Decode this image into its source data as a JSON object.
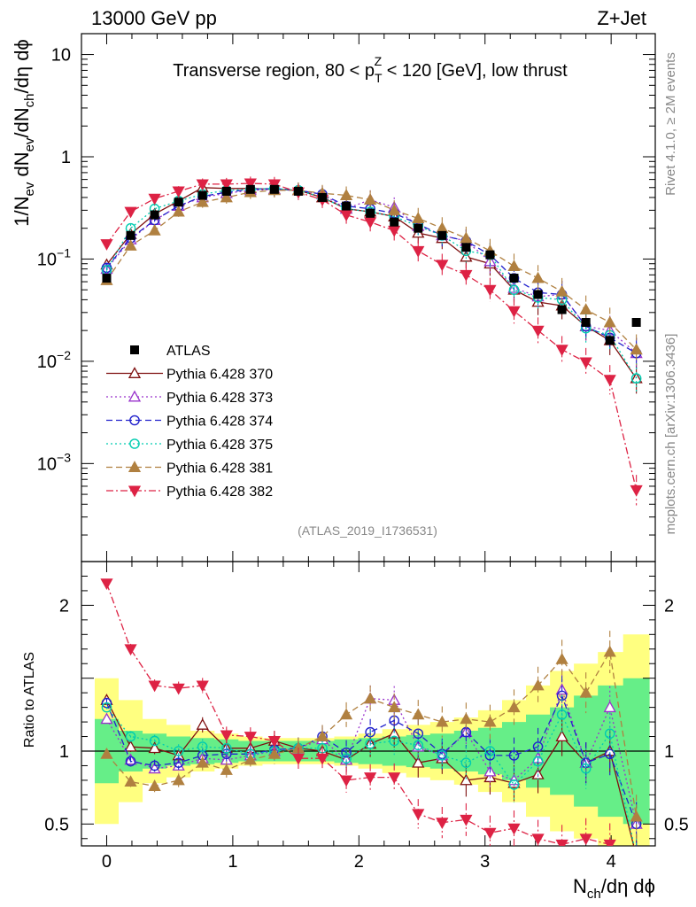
{
  "header": {
    "left": "13000 GeV pp",
    "right": "Z+Jet",
    "side_rivet": "Rivet 4.1.0, ≥ 2M events",
    "side_mcplots": "mcplots.cern.ch [arXiv:1306.3436]",
    "watermark": "(ATLAS_2019_I1736531)"
  },
  "chart_data": {
    "type": "line",
    "title": "Transverse region, 80 < p_T^Z < 120 [GeV], low thrust",
    "title_parts": {
      "a": "Transverse region, 80 < p",
      "sub": "T",
      "sup": "Z",
      "b": " < 120 [GeV], low thrust"
    },
    "xlabel": "N_ch/dη dϕ",
    "xlabel_parts": {
      "a": "N",
      "sub": "ch",
      "b": "/dη dϕ"
    },
    "ylabel": "1/N_ev dN_ev/dN_ch/dη dϕ",
    "ylabel_parts": [
      [
        "1/N",
        ""
      ],
      [
        "ev",
        "sub"
      ],
      [
        " dN",
        ""
      ],
      [
        "ev",
        "sub"
      ],
      [
        "/dN",
        ""
      ],
      [
        "ch",
        "sub"
      ],
      [
        "/dη dϕ",
        ""
      ]
    ],
    "ratio_ylabel": "Ratio to ATLAS",
    "xlim": [
      -0.2,
      4.35
    ],
    "ylim": [
      0.00011,
      16
    ],
    "yscale": "log",
    "ratio_ylim": [
      0.35,
      2.3
    ],
    "x_ticks": [
      0,
      1,
      2,
      3,
      4
    ],
    "x_tick_labels": [
      "0",
      "1",
      "2",
      "3",
      "4"
    ],
    "y_ticks": [
      {
        "v": 10,
        "base": "10",
        "exp": ""
      },
      {
        "v": 1,
        "base": "1",
        "exp": ""
      },
      {
        "v": 0.1,
        "base": "10",
        "exp": "−1"
      },
      {
        "v": 0.01,
        "base": "10",
        "exp": "−2"
      },
      {
        "v": 0.001,
        "base": "10",
        "exp": "−3"
      }
    ],
    "ratio_ticks": [
      0.5,
      1,
      2
    ],
    "ratio_tick_labels": [
      "0.5",
      "1",
      "2"
    ],
    "x": [
      0.0,
      0.19,
      0.38,
      0.57,
      0.76,
      0.95,
      1.14,
      1.33,
      1.52,
      1.71,
      1.9,
      2.09,
      2.28,
      2.47,
      2.66,
      2.85,
      3.04,
      3.23,
      3.42,
      3.61,
      3.8,
      3.99,
      4.2
    ],
    "data": {
      "name": "ATLAS",
      "values": [
        0.065,
        0.17,
        0.27,
        0.36,
        0.42,
        0.46,
        0.48,
        0.48,
        0.46,
        0.4,
        0.33,
        0.28,
        0.23,
        0.2,
        0.17,
        0.13,
        0.11,
        0.065,
        0.045,
        0.032,
        0.024,
        0.016,
        0.024
      ],
      "band_inner": [
        0.22,
        0.14,
        0.12,
        0.1,
        0.09,
        0.08,
        0.07,
        0.07,
        0.07,
        0.07,
        0.08,
        0.09,
        0.1,
        0.11,
        0.12,
        0.14,
        0.16,
        0.2,
        0.25,
        0.3,
        0.38,
        0.45,
        0.5
      ],
      "band_outer": [
        0.5,
        0.35,
        0.22,
        0.18,
        0.14,
        0.12,
        0.1,
        0.09,
        0.09,
        0.09,
        0.1,
        0.12,
        0.15,
        0.18,
        0.2,
        0.23,
        0.28,
        0.35,
        0.45,
        0.55,
        0.6,
        0.68,
        0.8
      ]
    },
    "series": [
      {
        "name": "Pythia 6.428 370",
        "color": "#7f1010",
        "dash": "",
        "marker": "triangle-up-open",
        "values": [
          0.088,
          0.175,
          0.275,
          0.37,
          0.5,
          0.49,
          0.49,
          0.48,
          0.47,
          0.4,
          0.31,
          0.29,
          0.26,
          0.18,
          0.16,
          0.105,
          0.09,
          0.05,
          0.038,
          0.035,
          0.022,
          0.016,
          0.0068
        ],
        "ratio": [
          1.35,
          1.03,
          1.02,
          0.97,
          1.18,
          1.02,
          1.02,
          1.07,
          1.02,
          1.0,
          0.94,
          1.05,
          1.12,
          0.92,
          0.95,
          0.8,
          0.82,
          0.78,
          0.84,
          1.1,
          0.92,
          1.0,
          0.28
        ]
      },
      {
        "name": "Pythia 6.428 373",
        "color": "#9933cc",
        "dash": "2,3",
        "marker": "triangle-up-open",
        "values": [
          0.08,
          0.155,
          0.24,
          0.33,
          0.4,
          0.44,
          0.47,
          0.48,
          0.47,
          0.43,
          0.31,
          0.38,
          0.32,
          0.21,
          0.17,
          0.15,
          0.095,
          0.052,
          0.043,
          0.045,
          0.022,
          0.02,
          0.012
        ],
        "ratio": [
          1.22,
          0.94,
          0.88,
          0.9,
          0.95,
          0.94,
          0.97,
          1.0,
          1.02,
          1.08,
          0.94,
          1.36,
          1.35,
          1.03,
          0.97,
          1.13,
          0.86,
          0.8,
          0.95,
          1.42,
          0.92,
          1.3,
          0.5
        ]
      },
      {
        "name": "Pythia 6.428 374",
        "color": "#2222cc",
        "dash": "7,4",
        "marker": "circle-open",
        "values": [
          0.082,
          0.16,
          0.24,
          0.33,
          0.41,
          0.45,
          0.48,
          0.49,
          0.47,
          0.43,
          0.33,
          0.31,
          0.28,
          0.22,
          0.17,
          0.15,
          0.11,
          0.065,
          0.047,
          0.045,
          0.022,
          0.017,
          0.012
        ],
        "ratio": [
          1.33,
          0.93,
          0.9,
          0.92,
          0.97,
          0.98,
          0.98,
          1.01,
          1.02,
          1.1,
          0.99,
          1.13,
          1.21,
          1.12,
          0.98,
          1.13,
          0.97,
          0.97,
          1.03,
          1.38,
          0.92,
          0.98,
          0.5
        ]
      },
      {
        "name": "Pythia 6.428 375",
        "color": "#00ccb0",
        "dash": "2,3",
        "marker": "circle-open",
        "values": [
          0.078,
          0.2,
          0.31,
          0.37,
          0.43,
          0.47,
          0.48,
          0.49,
          0.47,
          0.4,
          0.31,
          0.29,
          0.26,
          0.21,
          0.17,
          0.12,
          0.11,
          0.05,
          0.042,
          0.04,
          0.021,
          0.018,
          0.0068
        ],
        "ratio": [
          1.3,
          1.1,
          1.07,
          1.0,
          1.03,
          1.02,
          0.98,
          1.0,
          1.02,
          1.02,
          0.95,
          1.05,
          1.07,
          1.04,
          0.97,
          0.92,
          1.0,
          0.77,
          0.93,
          1.25,
          0.88,
          1.12,
          0.28
        ]
      },
      {
        "name": "Pythia 6.428 381",
        "color": "#b08040",
        "dash": "7,4",
        "marker": "triangle-up-filled",
        "values": [
          0.062,
          0.135,
          0.19,
          0.29,
          0.36,
          0.4,
          0.45,
          0.47,
          0.47,
          0.44,
          0.42,
          0.38,
          0.3,
          0.25,
          0.2,
          0.16,
          0.12,
          0.085,
          0.065,
          0.048,
          0.032,
          0.024,
          0.013
        ],
        "ratio": [
          0.98,
          0.79,
          0.76,
          0.8,
          0.92,
          0.87,
          0.94,
          0.98,
          1.02,
          1.1,
          1.25,
          1.36,
          1.3,
          1.25,
          1.2,
          1.22,
          1.2,
          1.3,
          1.45,
          1.63,
          1.4,
          1.68,
          0.55
        ]
      },
      {
        "name": "Pythia 6.428 382",
        "color": "#dd2244",
        "dash": "8,3,2,3",
        "marker": "triangle-down-filled",
        "values": [
          0.14,
          0.29,
          0.39,
          0.46,
          0.54,
          0.54,
          0.55,
          0.54,
          0.45,
          0.38,
          0.27,
          0.23,
          0.19,
          0.12,
          0.088,
          0.07,
          0.05,
          0.031,
          0.02,
          0.013,
          0.0098,
          0.0066,
          0.00055
        ],
        "ratio": [
          2.15,
          1.7,
          1.45,
          1.43,
          1.45,
          1.11,
          1.1,
          1.07,
          0.95,
          0.95,
          0.8,
          0.82,
          0.82,
          0.57,
          0.51,
          0.53,
          0.44,
          0.47,
          0.4,
          0.36,
          0.4,
          0.36,
          0.2
        ]
      }
    ]
  }
}
